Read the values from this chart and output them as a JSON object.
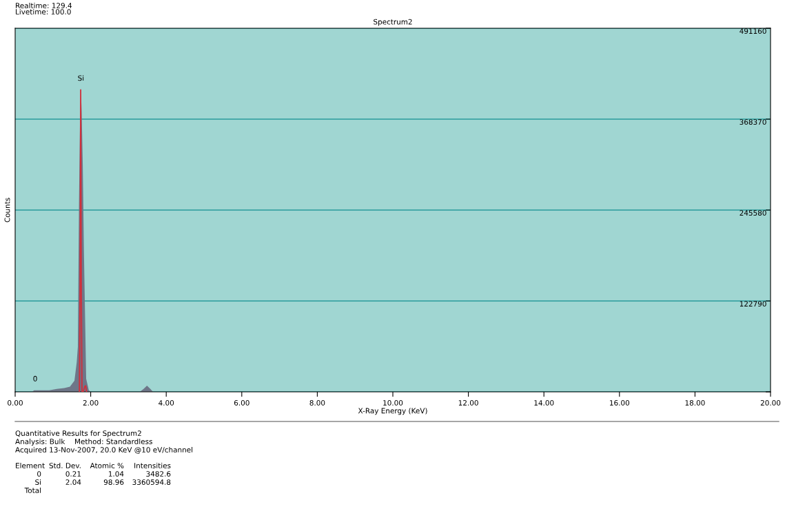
{
  "chart_data": {
    "type": "area",
    "title": "Spectrum2",
    "xlabel": "X-Ray Energy (KeV)",
    "ylabel": "Counts",
    "xlim": [
      0,
      20
    ],
    "ylim": [
      0,
      491160
    ],
    "xticks": [
      {
        "value": 0,
        "label": "0.00"
      },
      {
        "value": 2,
        "label": "2.00"
      },
      {
        "value": 4,
        "label": "4.00"
      },
      {
        "value": 6,
        "label": "6.00"
      },
      {
        "value": 8,
        "label": "8.00"
      },
      {
        "value": 10,
        "label": "10.00"
      },
      {
        "value": 12,
        "label": "12.00"
      },
      {
        "value": 14,
        "label": "14.00"
      },
      {
        "value": 16,
        "label": "16.00"
      },
      {
        "value": 18,
        "label": "18.00"
      },
      {
        "value": 20,
        "label": "20.00"
      }
    ],
    "yticks": [
      {
        "value": 0,
        "label": null
      },
      122790,
      245580,
      368370,
      491160
    ],
    "grid": "y",
    "series": [
      {
        "color": "#6e7688",
        "x": [
          0.45,
          0.5,
          0.55,
          0.7,
          0.9,
          1.0,
          1.1,
          1.3,
          1.45,
          1.57,
          1.63,
          1.66,
          1.69,
          1.72,
          1.74,
          1.76,
          1.79,
          1.82,
          1.85,
          1.88,
          1.95,
          2.0,
          3.3,
          3.4,
          3.49,
          3.58,
          3.65,
          3.7,
          20
        ],
        "values": [
          0,
          2000,
          2000,
          2000,
          2000,
          3000,
          4000,
          5000,
          7000,
          15000,
          40000,
          61000,
          253000,
          380000,
          408000,
          380000,
          306000,
          191000,
          104500,
          17700,
          2000,
          0,
          0,
          4000,
          8400,
          4000,
          0,
          0,
          0
        ]
      },
      {
        "type": "line",
        "color": "#d0303c",
        "x": [
          1.7,
          1.72,
          1.735,
          1.75,
          1.77,
          1.8,
          1.85,
          1.87,
          1.89
        ],
        "values": [
          0,
          150000,
          408000,
          150000,
          0,
          0,
          8000,
          8000,
          0
        ]
      }
    ],
    "annotations": [
      {
        "text": "Si",
        "x": 1.74,
        "y": 408000
      },
      {
        "text": "0",
        "x": 0.53,
        "y": 2000
      },
      "Realtime: 129.4",
      "Livetime: 100.0",
      "Quantitative Results for Spectrum2",
      "Analysis: Bulk",
      "Method: Standardless",
      "Acquired 13-Nov-2007, 20.0 KeV @10 eV/channel",
      "Element",
      "Std. Dev.",
      "Atomic %",
      "Intensities",
      "0",
      "0.21",
      "1.04",
      "3482.6",
      "Si",
      "2.04",
      "98.96",
      "3360594.8",
      "Total"
    ]
  }
}
